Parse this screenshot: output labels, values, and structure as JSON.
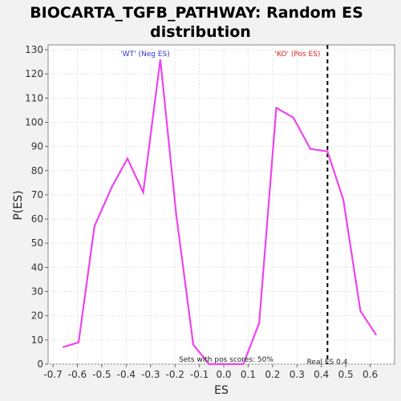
{
  "chart_data": {
    "type": "line",
    "title": "BIOCARTA_TGFB_PATHWAY: Random ES distribution",
    "title_lines": [
      "BIOCARTA_TGFB_PATHWAY: Random ES",
      "distribution"
    ],
    "xlabel": "ES",
    "ylabel": "P(ES)",
    "xlim": [
      -0.72,
      0.7
    ],
    "ylim": [
      0,
      132
    ],
    "xticks": [
      -0.7,
      -0.6,
      -0.5,
      -0.4,
      -0.3,
      -0.2,
      -0.1,
      0.0,
      0.1,
      0.2,
      0.3,
      0.4,
      0.5,
      0.6
    ],
    "xtick_labels": [
      "-0.7",
      "-0.6",
      "-0.5",
      "-0.4",
      "-0.3",
      "-0.2",
      "-0.1",
      "0.0",
      "0.1",
      "0.2",
      "0.3",
      "0.4",
      "0.5",
      "0.6"
    ],
    "yticks": [
      0,
      10,
      20,
      30,
      40,
      50,
      60,
      70,
      80,
      90,
      100,
      110,
      120,
      130
    ],
    "ytick_labels": [
      "0",
      "10",
      "20",
      "30",
      "40",
      "50",
      "60",
      "70",
      "80",
      "90",
      "100",
      "110",
      "120",
      "130"
    ],
    "grid": true,
    "series": [
      {
        "color": "#ee44ee",
        "x": [
          -0.66,
          -0.595,
          -0.53,
          -0.46,
          -0.395,
          -0.33,
          -0.26,
          -0.195,
          -0.125,
          -0.06,
          0.01,
          0.08,
          0.145,
          0.215,
          0.285,
          0.355,
          0.425,
          0.49,
          0.56,
          0.625
        ],
        "y": [
          7,
          9,
          57,
          73,
          85,
          71,
          126,
          62,
          8,
          0,
          0,
          0,
          17,
          106,
          102,
          89,
          88,
          68,
          22,
          12
        ]
      }
    ],
    "real_es": 0.425,
    "annotations": {
      "neg_label": "'WT' (Neg ES)",
      "pos_label": "'KO' (Pos ES)",
      "pos_scores": "Sets with pos scores: 50%",
      "real_es_label": "Real ES 0.4"
    },
    "colors": {
      "line": "#ee44ee",
      "neg_label": "#3333cc",
      "pos_label": "#dd2222",
      "real_es_line": "#000000"
    }
  }
}
